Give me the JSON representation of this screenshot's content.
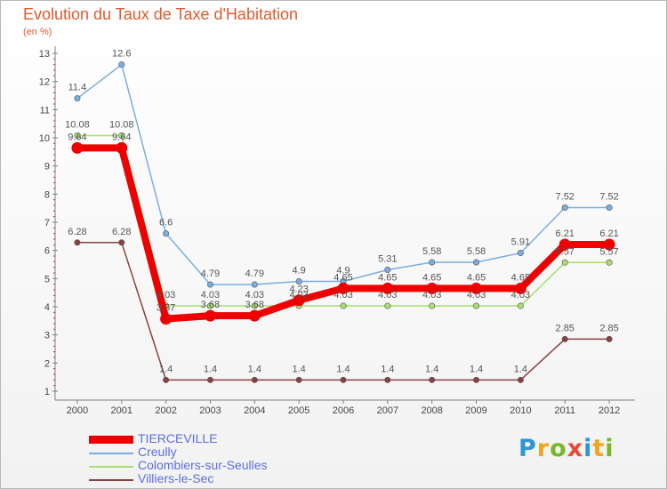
{
  "title": "Evolution du Taux de Taxe d'Habitation",
  "subtitle": "(en %)",
  "logo": "Proxiti",
  "colors": {
    "title": "#e05a2c",
    "axis": "#808080",
    "legend_text": "#5d6ee2",
    "logo": [
      "#2f95d4",
      "#f2a41c",
      "#79b829",
      "#e84a35",
      "#2f95d4",
      "#f2a41c",
      "#79b829"
    ]
  },
  "chart_data": {
    "type": "line",
    "x": [
      "2000",
      "2001",
      "2002",
      "2003",
      "2004",
      "2005",
      "2006",
      "2007",
      "2008",
      "2009",
      "2010",
      "2011",
      "2012"
    ],
    "yticks": [
      "1",
      "2",
      "3",
      "4",
      "5",
      "6",
      "7",
      "8",
      "9",
      "10",
      "11",
      "12",
      "13"
    ],
    "ylim": [
      1,
      13
    ],
    "grid": false,
    "legend_position": "bottom-left",
    "series": [
      {
        "name": "TIERCEVILLE",
        "color": "#ee0000",
        "stroke": "thick",
        "values": [
          9.64,
          9.64,
          3.57,
          3.68,
          3.68,
          4.23,
          4.65,
          4.65,
          4.65,
          4.65,
          4.65,
          6.21,
          6.21
        ],
        "labels": [
          "9.64",
          "9.64",
          "3.57",
          "3.68",
          "3.68",
          "4.23",
          "4.65",
          "4.65",
          "4.65",
          "4.65",
          "4.65",
          "6.21",
          "6.21"
        ]
      },
      {
        "name": "Creully",
        "color": "#7aaee0",
        "stroke": "thin",
        "values": [
          11.4,
          12.6,
          6.6,
          4.79,
          4.79,
          4.9,
          4.9,
          5.31,
          5.58,
          5.58,
          5.91,
          7.52,
          7.52
        ],
        "labels": [
          "11.4",
          "12.6",
          "6.6",
          "4.79",
          "4.79",
          "4.9",
          "4.9",
          "5.31",
          "5.58",
          "5.58",
          "5.91",
          "7.52",
          "7.52"
        ]
      },
      {
        "name": "Colombiers-sur-Seulles",
        "color": "#a6e070",
        "stroke": "thin",
        "values": [
          10.08,
          10.08,
          4.03,
          4.03,
          4.03,
          4.03,
          4.03,
          4.03,
          4.03,
          4.03,
          4.03,
          5.57,
          5.57
        ],
        "labels": [
          "10.08",
          "10.08",
          "4.03",
          "4.03",
          "4.03",
          "4.03",
          "4.03",
          "4.03",
          "4.03",
          "4.03",
          "4.03",
          "5.57",
          "5.57"
        ]
      },
      {
        "name": "Villiers-le-Sec",
        "color": "#8a4040",
        "stroke": "thin",
        "values": [
          6.28,
          6.28,
          1.4,
          1.4,
          1.4,
          1.4,
          1.4,
          1.4,
          1.4,
          1.4,
          1.4,
          2.85,
          2.85
        ],
        "labels": [
          "6.28",
          "6.28",
          "1.4",
          "1.4",
          "1.4",
          "1.4",
          "1.4",
          "1.4",
          "1.4",
          "1.4",
          "1.4",
          "2.85",
          "2.85"
        ]
      }
    ]
  }
}
